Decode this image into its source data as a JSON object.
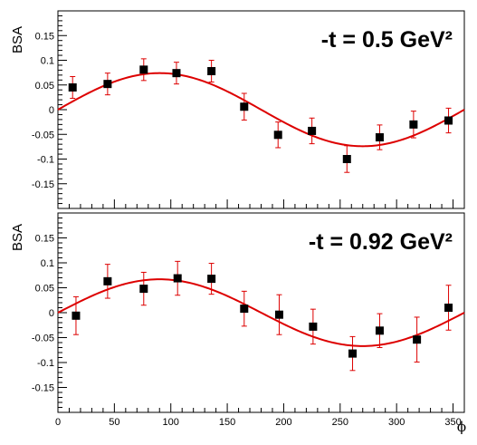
{
  "chart_data": [
    {
      "type": "scatter",
      "panel_label": "-t = 0.5 GeV²",
      "ylabel": "BSA",
      "xlabel": "",
      "xlim": [
        0,
        360
      ],
      "ylim": [
        -0.2,
        0.2
      ],
      "y_ticks": [
        -0.15,
        -0.1,
        -0.05,
        0,
        0.05,
        0.1,
        0.15
      ],
      "y_tick_labels": [
        "-0.15",
        "-0.1",
        "-0.05",
        "0",
        "0.05",
        "0.1",
        "0.15"
      ],
      "x_ticks": [
        0,
        50,
        100,
        150,
        200,
        250,
        300,
        350
      ],
      "x_tick_labels": [],
      "points": [
        {
          "x": 13,
          "y": 0.045,
          "err": 0.022
        },
        {
          "x": 44,
          "y": 0.052,
          "err": 0.022
        },
        {
          "x": 76,
          "y": 0.081,
          "err": 0.022
        },
        {
          "x": 105,
          "y": 0.074,
          "err": 0.022
        },
        {
          "x": 136,
          "y": 0.078,
          "err": 0.022
        },
        {
          "x": 165,
          "y": 0.006,
          "err": 0.027
        },
        {
          "x": 195,
          "y": -0.051,
          "err": 0.026
        },
        {
          "x": 225,
          "y": -0.043,
          "err": 0.026
        },
        {
          "x": 256,
          "y": -0.1,
          "err": 0.027
        },
        {
          "x": 285,
          "y": -0.056,
          "err": 0.025
        },
        {
          "x": 315,
          "y": -0.03,
          "err": 0.027
        },
        {
          "x": 346,
          "y": -0.022,
          "err": 0.025
        }
      ],
      "fit": {
        "amplitude": 0.074,
        "offset": 0.0
      }
    },
    {
      "type": "scatter",
      "panel_label": "-t = 0.92 GeV²",
      "ylabel": "BSA",
      "xlabel": "ϕ",
      "xlim": [
        0,
        360
      ],
      "ylim": [
        -0.2,
        0.2
      ],
      "y_ticks": [
        -0.15,
        -0.1,
        -0.05,
        0,
        0.05,
        0.1,
        0.15
      ],
      "y_tick_labels": [
        "-0.15",
        "-0.1",
        "-0.05",
        "0",
        "0.05",
        "0.1",
        "0.15"
      ],
      "x_ticks": [
        0,
        50,
        100,
        150,
        200,
        250,
        300,
        350
      ],
      "x_tick_labels": [
        "0",
        "50",
        "100",
        "150",
        "200",
        "250",
        "300",
        "350"
      ],
      "points": [
        {
          "x": 16,
          "y": -0.006,
          "err": 0.038
        },
        {
          "x": 44,
          "y": 0.063,
          "err": 0.034
        },
        {
          "x": 76,
          "y": 0.048,
          "err": 0.033
        },
        {
          "x": 106,
          "y": 0.069,
          "err": 0.034
        },
        {
          "x": 136,
          "y": 0.068,
          "err": 0.031
        },
        {
          "x": 165,
          "y": 0.008,
          "err": 0.035
        },
        {
          "x": 196,
          "y": -0.004,
          "err": 0.04
        },
        {
          "x": 226,
          "y": -0.028,
          "err": 0.035
        },
        {
          "x": 261,
          "y": -0.082,
          "err": 0.034
        },
        {
          "x": 285,
          "y": -0.036,
          "err": 0.034
        },
        {
          "x": 318,
          "y": -0.054,
          "err": 0.045
        },
        {
          "x": 346,
          "y": 0.01,
          "err": 0.045
        }
      ],
      "fit": {
        "amplitude": 0.067,
        "offset": 0.0
      }
    }
  ]
}
